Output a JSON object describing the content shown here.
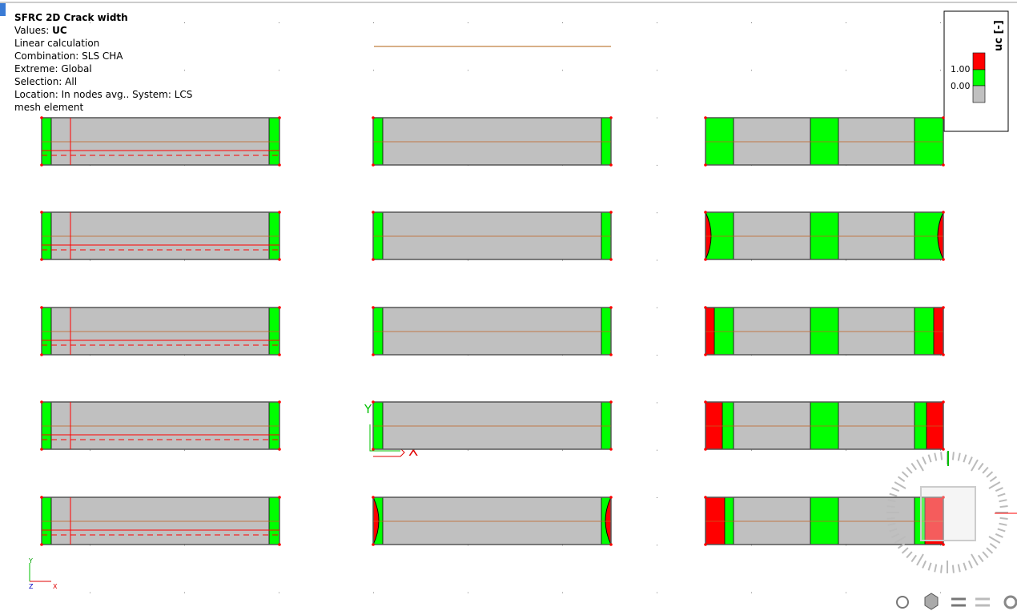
{
  "info": {
    "title": "SFRC  2D Crack width",
    "values": {
      "label": "Values:",
      "value": "UC"
    },
    "lines": [
      "Linear calculation",
      "Combination:  SLS CHA",
      "Extreme:  Global",
      "Selection:  All",
      "Location:  In nodes avg.. System:  LCS",
      "mesh element"
    ]
  },
  "legend": {
    "title": "uc [-]",
    "labels": [
      "1.00",
      "0.00"
    ]
  },
  "axes": {
    "global": [
      "Y",
      "Z",
      "X"
    ],
    "local": [
      "Y",
      "X"
    ]
  }
}
